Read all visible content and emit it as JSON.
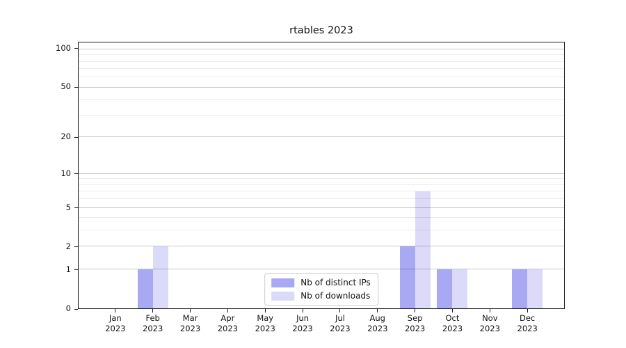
{
  "title": "rtables 2023",
  "chart_data": {
    "type": "bar",
    "title": "rtables 2023",
    "categories": [
      "Jan",
      "Feb",
      "Mar",
      "Apr",
      "May",
      "Jun",
      "Jul",
      "Aug",
      "Sep",
      "Oct",
      "Nov",
      "Dec"
    ],
    "category_year": "2023",
    "series": [
      {
        "name": "Nb of distinct IPs",
        "color": "#a8a8f3",
        "values": [
          0,
          1,
          0,
          0,
          0,
          0,
          0,
          0,
          2,
          1,
          0,
          1
        ]
      },
      {
        "name": "Nb of downloads",
        "color": "#dbdbf9",
        "values": [
          0,
          2,
          0,
          0,
          0,
          0,
          0,
          0,
          7,
          1,
          0,
          1
        ]
      }
    ],
    "xlabel": "",
    "ylabel": "",
    "yscale": "log1p",
    "ylim": [
      0,
      113
    ],
    "yticks": [
      0,
      1,
      2,
      5,
      10,
      20,
      50,
      100
    ],
    "yticks_minor": [
      3,
      4,
      6,
      7,
      8,
      9,
      30,
      40,
      60,
      70,
      80,
      90
    ],
    "grid": true,
    "legend_position": "lower center inside plot"
  },
  "colors": {
    "background": "#ffffff",
    "axis": "#1a1a1a",
    "grid_major": "rgba(0,0,0,0.22)",
    "grid_minor": "rgba(0,0,0,0.08)",
    "bar_distinct_ips": "#a8a8f3",
    "bar_downloads": "#dbdbf9",
    "legend_border": "#cccccc"
  }
}
